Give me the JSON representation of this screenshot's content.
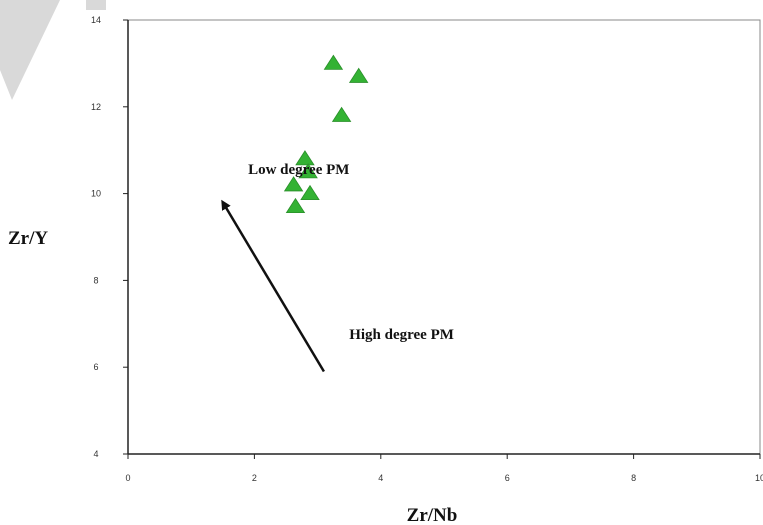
{
  "chart_data": {
    "type": "scatter",
    "xlabel": "Zr/Nb",
    "ylabel": "Zr/Y",
    "xlim": [
      0,
      10
    ],
    "ylim": [
      4,
      14
    ],
    "x_ticks": [
      "0",
      "2",
      "4",
      "6",
      "8",
      "10"
    ],
    "y_ticks": [
      "4",
      "6",
      "8",
      "10",
      "12",
      "14"
    ],
    "grid": false,
    "legend": "none",
    "marker": "triangle",
    "marker_color": "#33b233",
    "points": [
      {
        "x": 3.25,
        "y": 13.0
      },
      {
        "x": 3.65,
        "y": 12.7
      },
      {
        "x": 3.38,
        "y": 11.8
      },
      {
        "x": 2.8,
        "y": 10.8
      },
      {
        "x": 2.85,
        "y": 10.5
      },
      {
        "x": 2.62,
        "y": 10.2
      },
      {
        "x": 2.88,
        "y": 10.0
      },
      {
        "x": 2.65,
        "y": 9.7
      }
    ],
    "annotations": [
      {
        "text": "Low degree PM",
        "x": 1.9,
        "y": 10.45
      },
      {
        "text": "High degree PM",
        "x": 3.5,
        "y": 6.65
      }
    ],
    "arrow": {
      "from": [
        3.1,
        5.9
      ],
      "to": [
        1.5,
        9.8
      ]
    }
  }
}
